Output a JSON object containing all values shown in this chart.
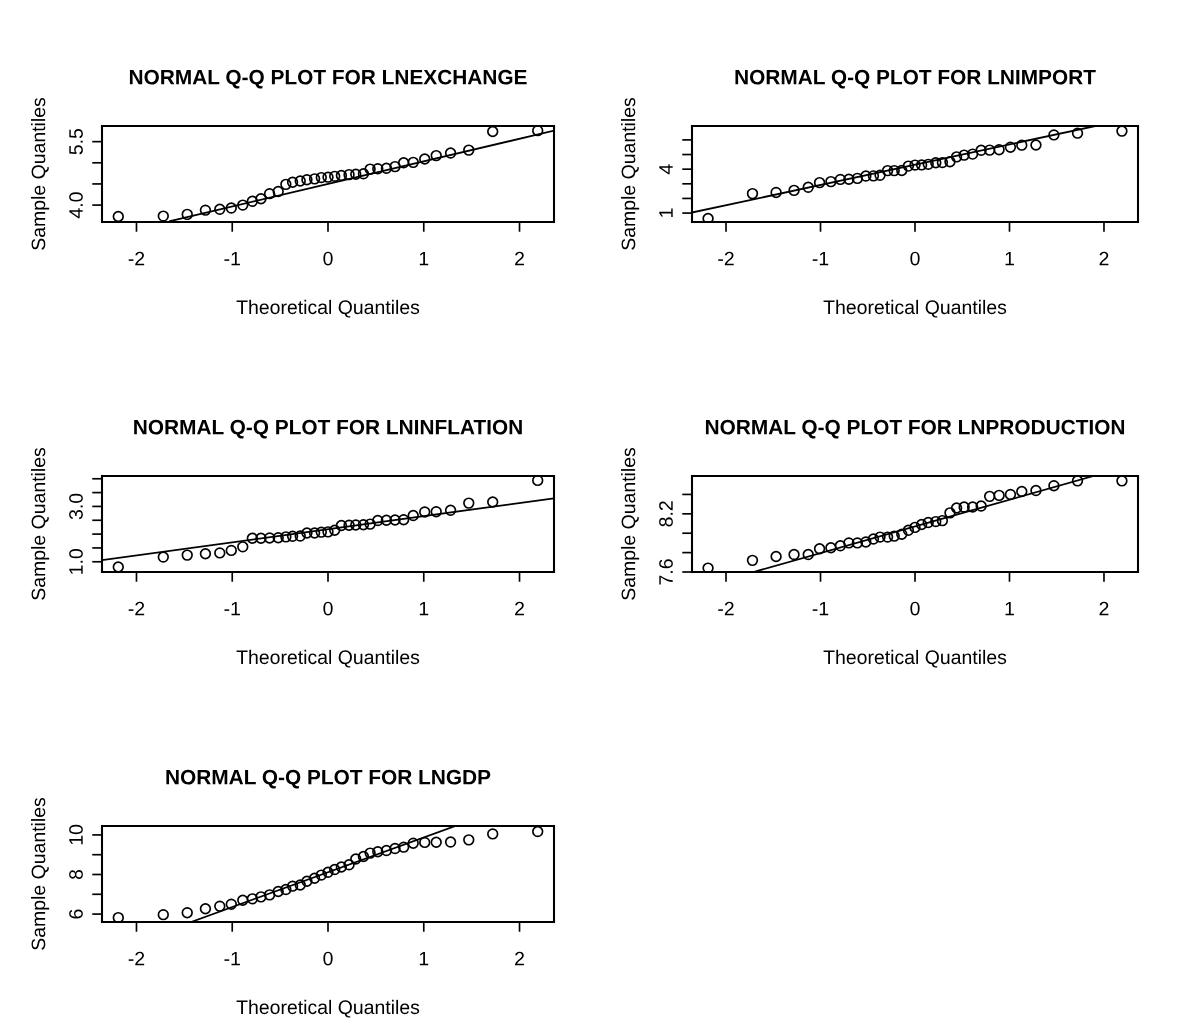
{
  "chart_data": [
    {
      "type": "scatter",
      "title": "NORMAL Q-Q PLOT FOR LNEXCHANGE",
      "xlabel": "Theoretical Quantiles",
      "ylabel": "Sample Quantiles",
      "grid": false,
      "legend": false,
      "x": [
        -2.19,
        -1.72,
        -1.47,
        -1.28,
        -1.13,
        -1.01,
        -0.89,
        -0.79,
        -0.7,
        -0.61,
        -0.52,
        -0.44,
        -0.37,
        -0.29,
        -0.22,
        -0.14,
        -0.07,
        0,
        0.07,
        0.14,
        0.22,
        0.29,
        0.37,
        0.44,
        0.52,
        0.61,
        0.7,
        0.79,
        0.89,
        1.01,
        1.13,
        1.28,
        1.47,
        1.72,
        2.19
      ],
      "xlim": [
        -2.36,
        2.36
      ],
      "xticks": [
        -2,
        -1,
        0,
        1,
        2
      ],
      "ylim": [
        3.6,
        5.87
      ],
      "yticks": [
        {
          "value": 4.0,
          "label": "4.0"
        },
        {
          "value": 4.5,
          "label": null
        },
        {
          "value": 5.0,
          "label": null
        },
        {
          "value": 5.5,
          "label": "5.5"
        }
      ],
      "series": [
        {
          "marker": "circle",
          "color": "#000000",
          "values": [
            3.73,
            3.74,
            3.78,
            3.88,
            3.9,
            3.93,
            4.0,
            4.09,
            4.15,
            4.27,
            4.32,
            4.49,
            4.54,
            4.57,
            4.6,
            4.62,
            4.65,
            4.66,
            4.68,
            4.7,
            4.72,
            4.73,
            4.74,
            4.85,
            4.86,
            4.87,
            4.91,
            5.0,
            5.01,
            5.09,
            5.17,
            5.23,
            5.3,
            5.74,
            5.76
          ]
        },
        {
          "type": "line",
          "color": "#000000",
          "line_style": "solid",
          "x": [
            -1.65,
            2.36
          ],
          "values": [
            3.62,
            5.76
          ]
        }
      ]
    },
    {
      "type": "scatter",
      "title": "NORMAL Q-Q PLOT FOR LNIMPORT",
      "xlabel": "Theoretical Quantiles",
      "ylabel": "Sample Quantiles",
      "grid": false,
      "legend": false,
      "x": [
        -2.19,
        -1.72,
        -1.47,
        -1.28,
        -1.13,
        -1.01,
        -0.89,
        -0.79,
        -0.7,
        -0.61,
        -0.52,
        -0.44,
        -0.37,
        -0.29,
        -0.22,
        -0.14,
        -0.07,
        0,
        0.07,
        0.14,
        0.22,
        0.29,
        0.37,
        0.44,
        0.52,
        0.61,
        0.7,
        0.79,
        0.89,
        1.01,
        1.13,
        1.28,
        1.47,
        1.72,
        2.19
      ],
      "xlim": [
        -2.36,
        2.36
      ],
      "xticks": [
        -2,
        -1,
        0,
        1,
        2
      ],
      "ylim": [
        0.39,
        6.95
      ],
      "yticks": [
        1,
        {
          "value": 2,
          "label": null
        },
        {
          "value": 3,
          "label": null
        },
        4,
        {
          "value": 5,
          "label": null
        },
        {
          "value": 6,
          "label": null
        }
      ],
      "series": [
        {
          "marker": "circle",
          "color": "#000000",
          "values": [
            0.63,
            2.33,
            2.41,
            2.55,
            2.76,
            3.08,
            3.15,
            3.3,
            3.31,
            3.37,
            3.53,
            3.54,
            3.58,
            3.9,
            3.9,
            3.91,
            4.21,
            4.28,
            4.29,
            4.33,
            4.44,
            4.45,
            4.51,
            4.84,
            4.96,
            5.03,
            5.29,
            5.3,
            5.33,
            5.5,
            5.64,
            5.65,
            6.34,
            6.46,
            6.6
          ]
        },
        {
          "type": "line",
          "color": "#000000",
          "line_style": "solid",
          "x": [
            -2.36,
            1.91
          ],
          "values": [
            1.04,
            6.95
          ]
        }
      ]
    },
    {
      "type": "scatter",
      "title": "NORMAL Q-Q PLOT FOR LNINFLATION",
      "xlabel": "Theoretical Quantiles",
      "ylabel": "Sample Quantiles",
      "grid": false,
      "legend": false,
      "x": [
        -2.19,
        -1.72,
        -1.47,
        -1.28,
        -1.13,
        -1.01,
        -0.89,
        -0.79,
        -0.7,
        -0.61,
        -0.52,
        -0.44,
        -0.37,
        -0.29,
        -0.22,
        -0.14,
        -0.07,
        0,
        0.07,
        0.14,
        0.22,
        0.29,
        0.37,
        0.44,
        0.52,
        0.61,
        0.7,
        0.79,
        0.89,
        1.01,
        1.13,
        1.28,
        1.47,
        1.72,
        2.19
      ],
      "xlim": [
        -2.36,
        2.36
      ],
      "xticks": [
        -2,
        -1,
        0,
        1,
        2
      ],
      "ylim": [
        0.63,
        4.1
      ],
      "yticks": [
        {
          "value": 1.0,
          "label": "1.0"
        },
        {
          "value": 1.5,
          "label": null
        },
        {
          "value": 2.0,
          "label": null
        },
        {
          "value": 2.5,
          "label": null
        },
        {
          "value": 3.0,
          "label": "3.0"
        },
        {
          "value": 3.5,
          "label": null
        },
        {
          "value": 4.0,
          "label": null
        }
      ],
      "series": [
        {
          "marker": "circle",
          "color": "#000000",
          "values": [
            0.81,
            1.17,
            1.24,
            1.29,
            1.32,
            1.41,
            1.54,
            1.85,
            1.85,
            1.86,
            1.87,
            1.9,
            1.92,
            1.93,
            2.04,
            2.04,
            2.07,
            2.08,
            2.14,
            2.31,
            2.32,
            2.33,
            2.34,
            2.36,
            2.49,
            2.5,
            2.51,
            2.52,
            2.67,
            2.8,
            2.81,
            2.86,
            3.12,
            3.16,
            3.94
          ]
        },
        {
          "type": "line",
          "color": "#000000",
          "line_style": "solid",
          "x": [
            -2.36,
            2.35
          ],
          "values": [
            1.06,
            3.29
          ]
        }
      ]
    },
    {
      "type": "scatter",
      "title": "NORMAL Q-Q PLOT FOR LNPRODUCTION",
      "xlabel": "Theoretical Quantiles",
      "ylabel": "Sample Quantiles",
      "grid": false,
      "legend": false,
      "x": [
        -2.19,
        -1.72,
        -1.47,
        -1.28,
        -1.13,
        -1.01,
        -0.89,
        -0.79,
        -0.7,
        -0.61,
        -0.52,
        -0.44,
        -0.37,
        -0.29,
        -0.22,
        -0.14,
        -0.07,
        0,
        0.07,
        0.14,
        0.22,
        0.29,
        0.37,
        0.44,
        0.52,
        0.61,
        0.7,
        0.79,
        0.89,
        1.01,
        1.13,
        1.28,
        1.47,
        1.72,
        2.19
      ],
      "xlim": [
        -2.36,
        2.36
      ],
      "xticks": [
        -2,
        -1,
        0,
        1,
        2
      ],
      "ylim": [
        7.6,
        8.59
      ],
      "yticks": [
        7.6,
        {
          "value": 7.8,
          "label": null
        },
        {
          "value": 8.0,
          "label": null
        },
        8.2,
        {
          "value": 8.4,
          "label": null
        }
      ],
      "series": [
        {
          "marker": "circle",
          "color": "#000000",
          "values": [
            7.64,
            7.72,
            7.76,
            7.78,
            7.78,
            7.84,
            7.85,
            7.87,
            7.9,
            7.9,
            7.91,
            7.94,
            7.96,
            7.96,
            7.97,
            7.99,
            8.03,
            8.06,
            8.09,
            8.11,
            8.12,
            8.13,
            8.21,
            8.26,
            8.27,
            8.27,
            8.28,
            8.38,
            8.39,
            8.4,
            8.43,
            8.44,
            8.49,
            8.54,
            8.54
          ]
        },
        {
          "type": "line",
          "color": "#000000",
          "line_style": "solid",
          "x": [
            -1.71,
            1.89
          ],
          "values": [
            7.6,
            8.59
          ]
        }
      ]
    },
    {
      "type": "scatter",
      "title": "NORMAL Q-Q PLOT FOR LNGDP",
      "xlabel": "Theoretical Quantiles",
      "ylabel": "Sample Quantiles",
      "grid": false,
      "legend": false,
      "x": [
        -2.19,
        -1.72,
        -1.47,
        -1.28,
        -1.13,
        -1.01,
        -0.89,
        -0.79,
        -0.7,
        -0.61,
        -0.52,
        -0.44,
        -0.37,
        -0.29,
        -0.22,
        -0.14,
        -0.07,
        0,
        0.07,
        0.14,
        0.22,
        0.29,
        0.37,
        0.44,
        0.52,
        0.61,
        0.7,
        0.79,
        0.89,
        1.01,
        1.13,
        1.28,
        1.47,
        1.72,
        2.19
      ],
      "xlim": [
        -2.36,
        2.36
      ],
      "xticks": [
        -2,
        -1,
        0,
        1,
        2
      ],
      "ylim": [
        5.6,
        10.45
      ],
      "yticks": [
        6,
        {
          "value": 7,
          "label": null
        },
        8,
        {
          "value": 9,
          "label": null
        },
        10
      ],
      "series": [
        {
          "marker": "circle",
          "color": "#000000",
          "values": [
            5.82,
            5.97,
            6.07,
            6.27,
            6.4,
            6.5,
            6.7,
            6.77,
            6.87,
            6.97,
            7.14,
            7.24,
            7.41,
            7.47,
            7.66,
            7.81,
            7.97,
            8.11,
            8.25,
            8.38,
            8.49,
            8.78,
            8.91,
            9.08,
            9.15,
            9.21,
            9.31,
            9.38,
            9.58,
            9.62,
            9.63,
            9.64,
            9.75,
            10.05,
            10.17
          ]
        },
        {
          "type": "line",
          "color": "#000000",
          "line_style": "solid",
          "x": [
            -1.43,
            1.33
          ],
          "values": [
            5.6,
            10.45
          ]
        }
      ]
    }
  ]
}
